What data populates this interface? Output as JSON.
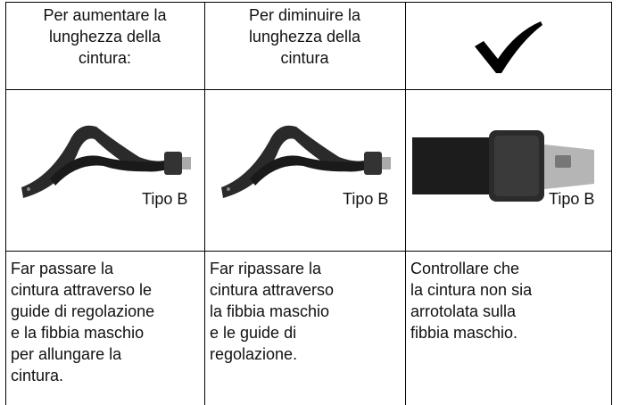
{
  "table": {
    "header": [
      [
        "Per aumentare la",
        "lunghezza della",
        "cintura:"
      ],
      [
        "Per diminuire la",
        "lunghezza della",
        "cintura"
      ]
    ],
    "image_labels": [
      "Tipo B",
      "Tipo B",
      "Tipo B"
    ],
    "instructions": [
      [
        "Far passare la",
        "cintura attraverso le",
        "guide di regolazione",
        "e la fibbia maschio",
        "per allungare la",
        "cintura."
      ],
      [
        "Far ripassare la",
        "cintura attraverso",
        "la fibbia maschio",
        "e le guide di",
        "regolazione."
      ],
      [
        "Controllare che",
        "la cintura non sia",
        "arrotolata sulla",
        "fibbia maschio."
      ]
    ]
  }
}
